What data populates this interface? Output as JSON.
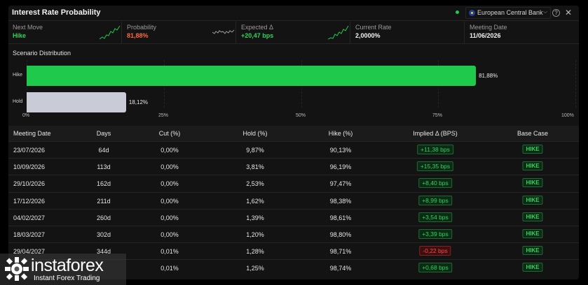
{
  "window": {
    "title": "Interest Rate Probability"
  },
  "toolbar": {
    "bank": "European Central Bank",
    "help_icon": "question-icon",
    "close_icon": "close-icon"
  },
  "stats": [
    {
      "label": "Next Move",
      "value": "Hike",
      "color": "#2fd45e"
    },
    {
      "label": "Probability",
      "value": "81,88%",
      "color": "#ff6a3d"
    },
    {
      "label": "Expected Δ",
      "value": "+20,47 bps",
      "color": "#2fd45e"
    },
    {
      "label": "Current Rate",
      "value": "2,0000%",
      "color": "#f2f2f2"
    },
    {
      "label": "Meeting Date",
      "value": "11/06/2026",
      "color": "#f2f2f2"
    }
  ],
  "distribution": {
    "title": "Scenario Distribution",
    "bars": [
      {
        "label": "Hike",
        "value": 81.88,
        "display": "81,88%",
        "color": "#1ec94c"
      },
      {
        "label": "Hold",
        "value": 18.12,
        "display": "18,12%",
        "color": "#c9ccd6"
      }
    ],
    "ticks": [
      "0%",
      "25%",
      "50%",
      "75%",
      "100%"
    ]
  },
  "table": {
    "headers": [
      "Meeting Date",
      "Days",
      "Cut (%)",
      "Hold (%)",
      "Hike (%)",
      "Implied Δ (BPS)",
      "Base Case"
    ],
    "rows": [
      {
        "date": "23/07/2026",
        "days": "64d",
        "cut": "0,00%",
        "hold": "9,87%",
        "hike": "90,13%",
        "implied": "+11,38 bps",
        "sign": "pos",
        "base": "HIKE"
      },
      {
        "date": "10/09/2026",
        "days": "113d",
        "cut": "0,00%",
        "hold": "3,81%",
        "hike": "96,19%",
        "implied": "+15,35 bps",
        "sign": "pos",
        "base": "HIKE"
      },
      {
        "date": "29/10/2026",
        "days": "162d",
        "cut": "0,00%",
        "hold": "2,53%",
        "hike": "97,47%",
        "implied": "+8,40 bps",
        "sign": "pos",
        "base": "HIKE"
      },
      {
        "date": "17/12/2026",
        "days": "211d",
        "cut": "0,00%",
        "hold": "1,62%",
        "hike": "98,38%",
        "implied": "+8,99 bps",
        "sign": "pos",
        "base": "HIKE"
      },
      {
        "date": "04/02/2027",
        "days": "260d",
        "cut": "0,00%",
        "hold": "1,39%",
        "hike": "98,61%",
        "implied": "+3,54 bps",
        "sign": "pos",
        "base": "HIKE"
      },
      {
        "date": "18/03/2027",
        "days": "302d",
        "cut": "0,00%",
        "hold": "1,20%",
        "hike": "98,80%",
        "implied": "+3,39 bps",
        "sign": "pos",
        "base": "HIKE"
      },
      {
        "date": "29/04/2027",
        "days": "344d",
        "cut": "0,01%",
        "hold": "1,28%",
        "hike": "98,71%",
        "implied": "-0,22 bps",
        "sign": "neg",
        "base": "HIKE"
      },
      {
        "date": "",
        "days": "",
        "cut": "0,01%",
        "hold": "1,25%",
        "hike": "98,74%",
        "implied": "+0,68 bps",
        "sign": "pos",
        "base": "HIKE"
      }
    ]
  },
  "watermark": {
    "name": "instaforex",
    "tagline": "Instant Forex Trading"
  }
}
